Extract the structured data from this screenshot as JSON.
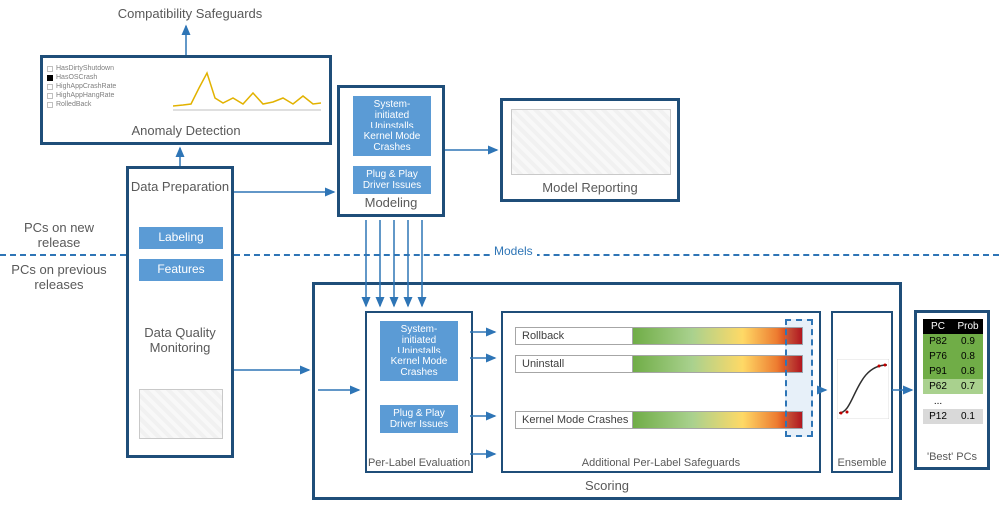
{
  "colors": {
    "border": "#1f4e79",
    "accent": "#5b9bd5",
    "arrow": "#2e75b6",
    "text": "#595959"
  },
  "top_title": "Compatibility Safeguards",
  "anomaly": {
    "title": "Anomaly Detection",
    "legend_items": [
      "HasDirtyShutdown",
      "HasOSCrash",
      "HighAppCrashRate",
      "HighAppHangRate",
      "RolledBack"
    ]
  },
  "data_prep": {
    "title": "Data Preparation",
    "labeling": "Labeling",
    "features": "Features",
    "dqm": "Data Quality Monitoring"
  },
  "modeling": {
    "title": "Modeling",
    "items": [
      "System-initiated Uninstalls",
      "Kernel Mode Crashes",
      "Plug & Play Driver Issues"
    ]
  },
  "reporting": {
    "title": "Model Reporting"
  },
  "side": {
    "new": "PCs on new release",
    "prev": "PCs on previous releases"
  },
  "models_tag": "Models",
  "scoring": {
    "title": "Scoring"
  },
  "per_label": {
    "title": "Per-Label Evaluation",
    "items": [
      "System-initiated Uninstalls",
      "Kernel Mode Crashes",
      "Plug & Play Driver Issues"
    ]
  },
  "safeguards": {
    "title": "Additional Per-Label Safeguards",
    "bars": [
      "Rollback",
      "Uninstall",
      "Kernel Mode Crashes"
    ]
  },
  "ensemble": {
    "title": "Ensemble"
  },
  "best": {
    "title": "'Best' PCs",
    "headers": [
      "PC",
      "Prob"
    ],
    "rows": [
      {
        "pc": "P82",
        "p": "0.9",
        "c": "#70ad47"
      },
      {
        "pc": "P76",
        "p": "0.8",
        "c": "#70ad47"
      },
      {
        "pc": "P91",
        "p": "0.8",
        "c": "#70ad47"
      },
      {
        "pc": "P62",
        "p": "0.7",
        "c": "#a9d18e"
      },
      {
        "pc": "...",
        "p": "",
        "c": "#ffffff"
      },
      {
        "pc": "P12",
        "p": "0.1",
        "c": "#d9d9d9"
      }
    ]
  }
}
